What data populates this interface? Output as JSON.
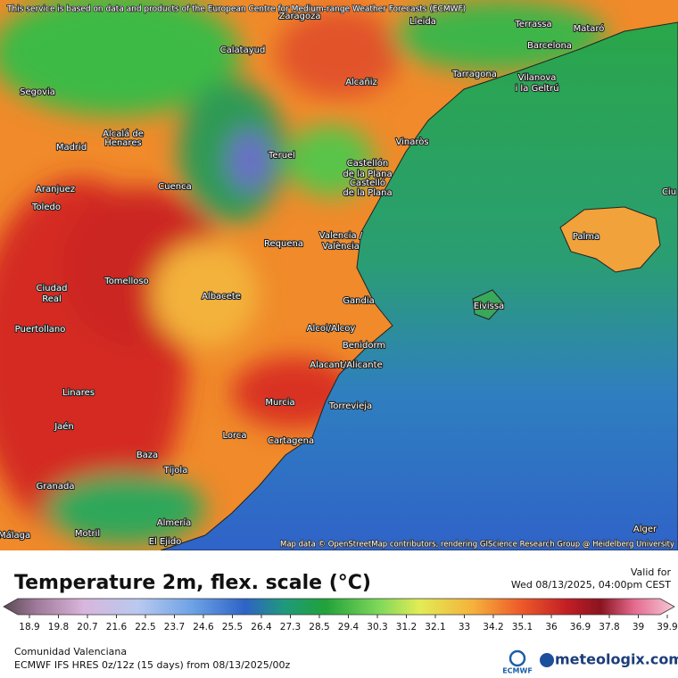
{
  "map": {
    "attribution_top": "This service is based on data and products of the European Centre for Medium-range Weather Forecasts (ECMWF)",
    "attribution_bottom": "Map data © OpenStreetMap contributors, rendering GIScience Research Group @ Heidelberg University",
    "cities": [
      "Zaragoza",
      "Lleida",
      "Terrassa",
      "Mataró",
      "Calatayud",
      "Barcelona",
      "Alcañiz",
      "Tarragona",
      "Vilanova",
      "i la Geltrú",
      "Segovia",
      "Alcalá de",
      "Henares",
      "Madrid",
      "Vinaròs",
      "Teruel",
      "Castellón",
      "de la Plana",
      "Castelló",
      "de la Plana",
      "Aranjuez",
      "Cuenca",
      "Toledo",
      "Ciu",
      "Valencia /",
      "València",
      "Requena",
      "Palma",
      "Tomelloso",
      "Ciudad",
      "Real",
      "Albacete",
      "Gandia",
      "Eivissa",
      "Puertollano",
      "Alcoi/Alcoy",
      "Benidorm",
      "Alacant/Alicante",
      "Linares",
      "Murcia",
      "Torrevieja",
      "Jaén",
      "Lorca",
      "Cartagena",
      "Baza",
      "Tíjola",
      "Granada",
      "Almería",
      "Málaga",
      "Motril",
      "El Ejido",
      "Alger"
    ]
  },
  "legend": {
    "title": "Temperature 2m, flex. scale (°C)",
    "ticks": [
      18.9,
      19.8,
      20.7,
      21.6,
      22.5,
      23.7,
      24.6,
      25.5,
      26.4,
      27.3,
      28.5,
      29.4,
      30.3,
      31.2,
      32.1,
      33,
      34.2,
      35.1,
      36,
      36.9,
      37.8,
      39,
      39.9
    ]
  },
  "valid": {
    "label": "Valid for",
    "time": "Wed 08/13/2025, 04:00pm CEST"
  },
  "footer": {
    "region": "Comunidad Valenciana",
    "model": "ECMWF IFS HRES 0z/12z (15 days) from 08/13/2025/00z",
    "ecmwf_logo": "ECMWF",
    "brand": "meteologix.com"
  }
}
